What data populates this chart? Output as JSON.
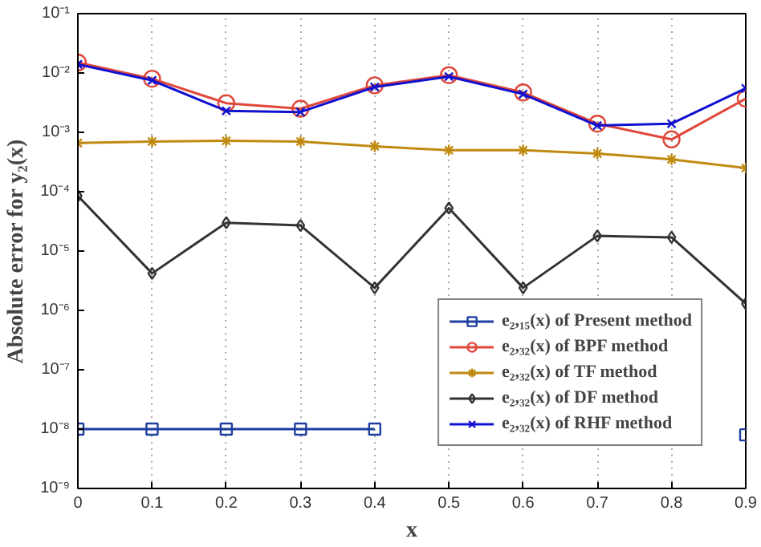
{
  "chart_data": {
    "type": "line",
    "xlabel": "x",
    "ylabel": "Absolute error for y₂(x)",
    "x": [
      0,
      0.1,
      0.2,
      0.3,
      0.4,
      0.5,
      0.6,
      0.7,
      0.8,
      0.9
    ],
    "xlim": [
      0,
      0.9
    ],
    "xticks": [
      0,
      0.1,
      0.2,
      0.3,
      0.4,
      0.5,
      0.6,
      0.7,
      0.8,
      0.9
    ],
    "ylim": [
      1e-09,
      0.1
    ],
    "yticks": [
      {
        "value": 1e-09,
        "label": "10⁻⁹"
      },
      {
        "value": 1e-08,
        "label": "10⁻⁸"
      },
      {
        "value": 1e-07,
        "label": "10⁻⁷"
      },
      {
        "value": 1e-06,
        "label": "10⁻⁶"
      },
      {
        "value": 1e-05,
        "label": "10⁻⁵"
      },
      {
        "value": 0.0001,
        "label": "10⁻⁴"
      },
      {
        "value": 0.001,
        "label": "10⁻³"
      },
      {
        "value": 0.01,
        "label": "10⁻²"
      },
      {
        "value": 0.1,
        "label": "10⁻¹"
      }
    ],
    "log": "y",
    "grid": "x",
    "legend": "bottom right",
    "line_style": "solid",
    "series": [
      {
        "name": "e₂,₁₅(x) of Present method",
        "color": "#1f3f9f",
        "marker": "square",
        "values": [
          1e-08,
          1e-08,
          1e-08,
          1e-08,
          1e-08,
          null,
          null,
          null,
          null,
          8e-09
        ]
      },
      {
        "name": "e₂,₃₂(x) of BPF method",
        "color": "#e0473a",
        "marker": "circle",
        "values": [
          0.015,
          0.008,
          0.0031,
          0.0025,
          0.0062,
          0.0092,
          0.0047,
          0.0014,
          0.00076,
          0.0037
        ]
      },
      {
        "name": "e₂,₃₂(x) of TF method",
        "color": "#c08a10",
        "marker": "cross",
        "values": [
          0.00066,
          0.0007,
          0.00072,
          0.0007,
          0.00058,
          0.0005,
          0.0005,
          0.00044,
          0.00035,
          0.00025
        ]
      },
      {
        "name": "e₂,₃₂(x) of DF method",
        "color": "#333333",
        "marker": "diamond",
        "values": [
          8.5e-05,
          4.2e-06,
          3e-05,
          2.7e-05,
          2.4e-06,
          5.3e-05,
          2.4e-06,
          1.8e-05,
          1.7e-05,
          1.3e-06
        ]
      },
      {
        "name": "e₂,₃₂(x) of RHF method",
        "color": "#1010d0",
        "marker": "x",
        "values": [
          0.014,
          0.0075,
          0.0023,
          0.0022,
          0.0058,
          0.0087,
          0.0044,
          0.0013,
          0.0014,
          0.0055
        ]
      }
    ]
  }
}
